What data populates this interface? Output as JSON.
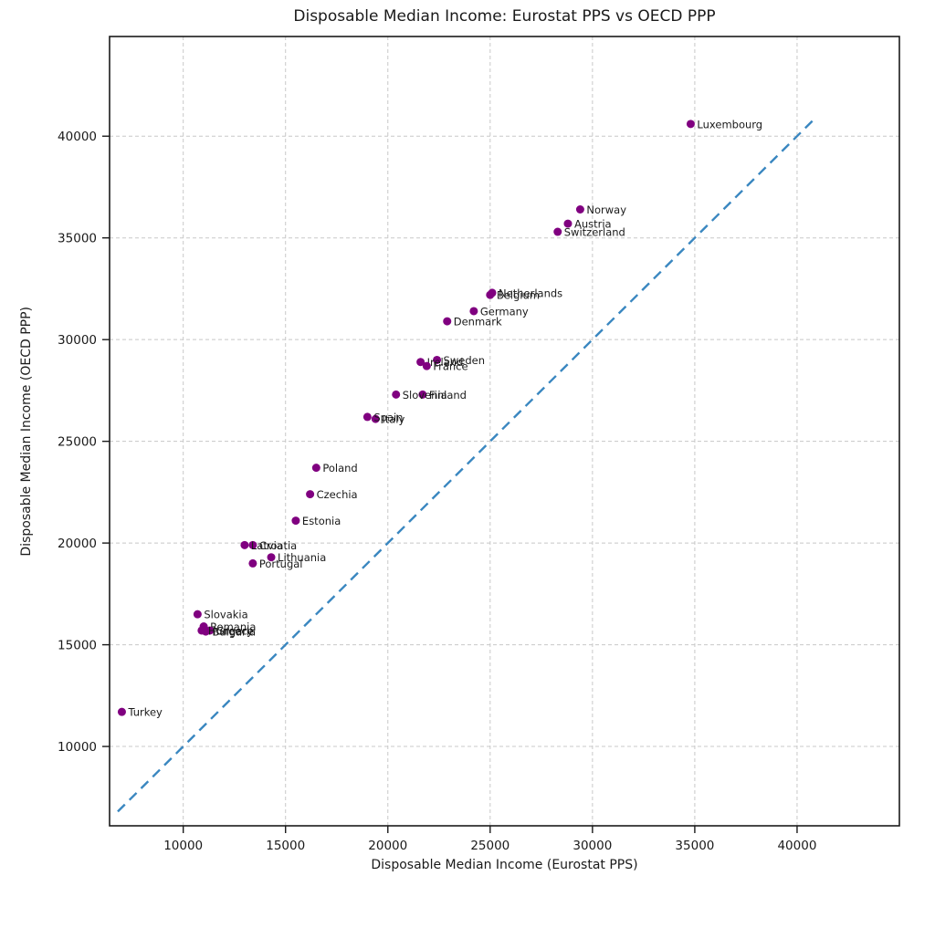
{
  "page": {
    "background": "#ffffff"
  },
  "chart_data": {
    "type": "scatter",
    "title": "Disposable Median Income: Eurostat PPS vs OECD PPP",
    "xlabel": "Disposable Median Income (Eurostat PPS)",
    "ylabel": "Disposable Median Income (OECD PPP)",
    "xlim": [
      6400,
      45000
    ],
    "ylim": [
      6100,
      44900
    ],
    "xticks": [
      10000,
      15000,
      20000,
      25000,
      30000,
      35000,
      40000
    ],
    "yticks": [
      10000,
      15000,
      20000,
      25000,
      30000,
      35000,
      40000
    ],
    "grid": true,
    "grid_color": "#c8c8c8",
    "marker": {
      "color": "#800080",
      "radius": 4.5
    },
    "label_color": "#1a1a1a",
    "reference_line": {
      "meaning": "y = x",
      "style": "dashed",
      "color": "#3a87c0",
      "from": 6800,
      "to": 40800
    },
    "points": [
      {
        "label": "Luxembourg",
        "x": 34800,
        "y": 40600
      },
      {
        "label": "Norway",
        "x": 29400,
        "y": 36400
      },
      {
        "label": "Austria",
        "x": 28800,
        "y": 35700
      },
      {
        "label": "Switzerland",
        "x": 28300,
        "y": 35300
      },
      {
        "label": "Netherlands",
        "x": 25100,
        "y": 32300
      },
      {
        "label": "Belgium",
        "x": 25000,
        "y": 32200
      },
      {
        "label": "Germany",
        "x": 24200,
        "y": 31400
      },
      {
        "label": "Denmark",
        "x": 22900,
        "y": 30900
      },
      {
        "label": "Sweden",
        "x": 22400,
        "y": 29000
      },
      {
        "label": "Ireland",
        "x": 21600,
        "y": 28900
      },
      {
        "label": "France",
        "x": 21900,
        "y": 28700
      },
      {
        "label": "Finland",
        "x": 21700,
        "y": 27300
      },
      {
        "label": "Slovenia",
        "x": 20400,
        "y": 27300
      },
      {
        "label": "Italy",
        "x": 19400,
        "y": 26100
      },
      {
        "label": "Spain",
        "x": 19000,
        "y": 26200
      },
      {
        "label": "Poland",
        "x": 16500,
        "y": 23700
      },
      {
        "label": "Czechia",
        "x": 16200,
        "y": 22400
      },
      {
        "label": "Estonia",
        "x": 15500,
        "y": 21100
      },
      {
        "label": "Croatia",
        "x": 13400,
        "y": 19900
      },
      {
        "label": "Latvia",
        "x": 13000,
        "y": 19900
      },
      {
        "label": "Lithuania",
        "x": 14300,
        "y": 19300
      },
      {
        "label": "Portugal",
        "x": 13400,
        "y": 19000
      },
      {
        "label": "Slovakia",
        "x": 10700,
        "y": 16500
      },
      {
        "label": "Romania",
        "x": 11000,
        "y": 15900
      },
      {
        "label": "Greece",
        "x": 11300,
        "y": 15700
      },
      {
        "label": "Bulgaria",
        "x": 11100,
        "y": 15650
      },
      {
        "label": "Hungary",
        "x": 10900,
        "y": 15700
      },
      {
        "label": "Turkey",
        "x": 7000,
        "y": 11700
      }
    ]
  }
}
